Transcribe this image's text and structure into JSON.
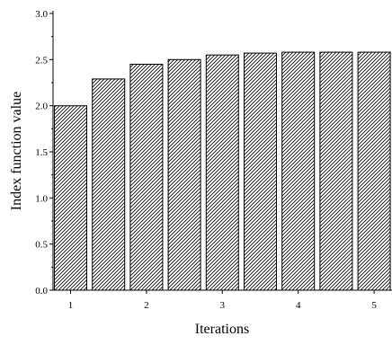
{
  "chart_data": {
    "type": "bar",
    "title": "",
    "xlabel": "Iterations",
    "ylabel": "Index function value",
    "ylim": [
      0,
      3.0
    ],
    "y_ticks": [
      "0.0",
      "0.5",
      "1.0",
      "1.5",
      "2.0",
      "2.5",
      "3.0"
    ],
    "x_ticks": [
      "1",
      "2",
      "3",
      "4",
      "5"
    ],
    "bar_pattern": "diagonal-hatch",
    "bar_color": "#000000",
    "grid": false,
    "values": [
      2.0,
      2.29,
      2.45,
      2.5,
      2.55,
      2.57,
      2.58,
      2.58,
      2.58
    ]
  }
}
